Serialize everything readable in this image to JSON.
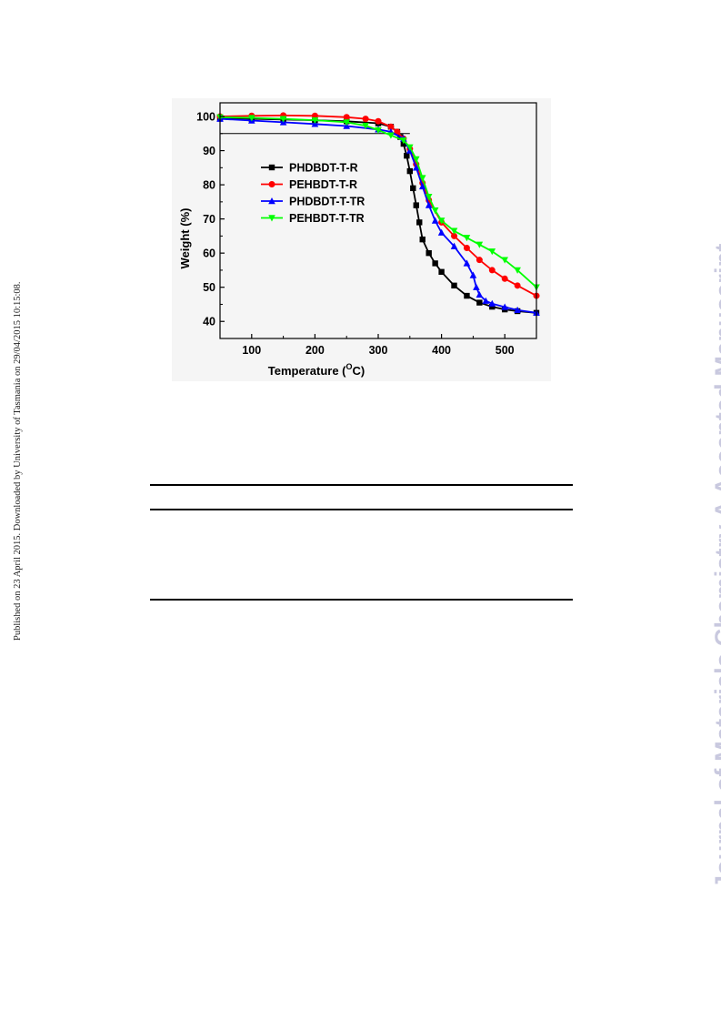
{
  "side_note": "Published on 23 April 2015. Downloaded by University of Tasmania on 29/04/2015 10:15:08.",
  "watermark": "Journal of Materials Chemistry A Accepted Manuscript",
  "chart_data": {
    "type": "line",
    "xlabel_main": "Temperature (",
    "xlabel_sup": "O",
    "xlabel_tail": "C)",
    "ylabel": "Weight (%)",
    "xlim": [
      50,
      550
    ],
    "ylim": [
      35,
      104
    ],
    "xticks": [
      "100",
      "200",
      "300",
      "400",
      "500"
    ],
    "xtick_values": [
      100,
      200,
      300,
      400,
      500
    ],
    "yticks": [
      "40",
      "50",
      "60",
      "70",
      "80",
      "90",
      "100"
    ],
    "ytick_values": [
      40,
      50,
      60,
      70,
      80,
      90,
      100
    ],
    "legend_position": "middle-left",
    "reference_lines": [
      {
        "axis": "y",
        "value": 95,
        "x_range": [
          50,
          350
        ]
      },
      {
        "axis": "y",
        "value": 104,
        "x_range": [
          50,
          550
        ]
      }
    ],
    "series": [
      {
        "name": "PHDBDT-T-R",
        "color": "#000000",
        "marker": "square",
        "x": [
          50,
          100,
          150,
          200,
          250,
          300,
          320,
          330,
          335,
          340,
          345,
          350,
          355,
          360,
          365,
          370,
          380,
          390,
          400,
          420,
          440,
          460,
          480,
          500,
          520,
          550
        ],
        "y": [
          99.5,
          99.3,
          99.1,
          98.9,
          98.6,
          98.0,
          97.0,
          95.5,
          94.0,
          92.0,
          88.5,
          84.0,
          79.0,
          74.0,
          69.0,
          64.0,
          60.0,
          57.0,
          54.5,
          50.5,
          47.5,
          45.5,
          44.3,
          43.5,
          43.0,
          42.5
        ]
      },
      {
        "name": "PEHBDT-T-R",
        "color": "#ff0000",
        "marker": "circle",
        "x": [
          50,
          100,
          150,
          200,
          250,
          280,
          300,
          320,
          330,
          340,
          350,
          360,
          370,
          380,
          400,
          420,
          440,
          460,
          480,
          500,
          520,
          550
        ],
        "y": [
          100.0,
          100.2,
          100.3,
          100.2,
          99.8,
          99.3,
          98.6,
          97.0,
          95.5,
          93.5,
          90.5,
          86.0,
          80.5,
          75.5,
          69.0,
          65.0,
          61.5,
          58.0,
          55.0,
          52.5,
          50.5,
          47.5
        ]
      },
      {
        "name": "PHDBDT-T-TR",
        "color": "#0000ff",
        "marker": "triangle-up",
        "x": [
          50,
          100,
          150,
          200,
          250,
          300,
          320,
          340,
          350,
          360,
          370,
          380,
          390,
          400,
          420,
          440,
          450,
          455,
          460,
          470,
          480,
          500,
          520,
          550
        ],
        "y": [
          99.3,
          98.8,
          98.3,
          97.8,
          97.2,
          96.2,
          95.5,
          93.5,
          90.0,
          85.0,
          79.5,
          74.0,
          69.5,
          66.0,
          62.0,
          57.0,
          53.5,
          50.0,
          47.8,
          46.0,
          45.2,
          44.2,
          43.3,
          42.5
        ]
      },
      {
        "name": "PEHBDT-T-TR",
        "color": "#00ff00",
        "marker": "triangle-down",
        "x": [
          50,
          100,
          150,
          200,
          250,
          280,
          300,
          320,
          340,
          350,
          360,
          370,
          380,
          390,
          400,
          420,
          440,
          460,
          480,
          500,
          520,
          550
        ],
        "y": [
          99.8,
          99.6,
          99.3,
          98.9,
          98.3,
          97.3,
          96.0,
          94.5,
          93.0,
          91.0,
          87.5,
          82.0,
          76.5,
          72.5,
          69.5,
          66.5,
          64.5,
          62.5,
          60.5,
          58.0,
          55.0,
          50.0
        ]
      }
    ]
  }
}
